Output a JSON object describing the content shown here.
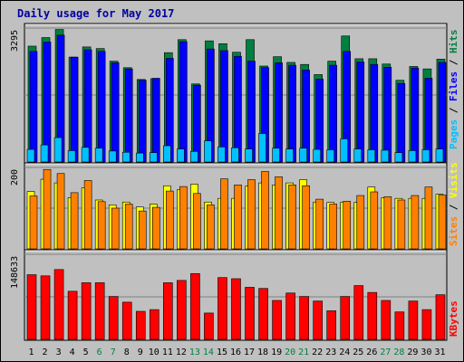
{
  "chart_data": [
    {
      "type": "bar",
      "title": "Daily usage for May 2017",
      "categories": [
        "1",
        "2",
        "3",
        "4",
        "5",
        "6",
        "7",
        "8",
        "9",
        "10",
        "11",
        "12",
        "13",
        "14",
        "15",
        "16",
        "17",
        "18",
        "19",
        "20",
        "21",
        "22",
        "23",
        "24",
        "25",
        "26",
        "27",
        "28",
        "29",
        "30",
        "31"
      ],
      "weekend_days": [
        "6",
        "7",
        "13",
        "14",
        "20",
        "21",
        "27",
        "28"
      ],
      "ymax_label": "3295",
      "ylim": [
        0,
        3295
      ],
      "series": [
        {
          "name": "Hits",
          "color": "#008040",
          "values": [
            2850,
            3060,
            3260,
            2580,
            2830,
            2790,
            2480,
            2320,
            2030,
            2050,
            2690,
            3010,
            1920,
            2980,
            2910,
            2700,
            3010,
            2360,
            2590,
            2450,
            2400,
            2150,
            2480,
            3100,
            2540,
            2540,
            2410,
            2010,
            2350,
            2290,
            2530
          ]
        },
        {
          "name": "Files",
          "color": "#0000ff",
          "values": [
            2720,
            2950,
            3120,
            2580,
            2760,
            2720,
            2440,
            2290,
            2010,
            2060,
            2550,
            2960,
            1890,
            2780,
            2740,
            2600,
            2480,
            2320,
            2440,
            2380,
            2260,
            2040,
            2380,
            2720,
            2460,
            2400,
            2330,
            1930,
            2310,
            2060,
            2450
          ]
        },
        {
          "name": "Pages",
          "color": "#00c0ff",
          "values": [
            310,
            420,
            600,
            280,
            360,
            340,
            270,
            240,
            220,
            230,
            400,
            320,
            260,
            520,
            370,
            350,
            320,
            700,
            340,
            320,
            340,
            310,
            300,
            570,
            320,
            300,
            290,
            230,
            280,
            300,
            320
          ]
        }
      ]
    },
    {
      "type": "bar",
      "ymax_label": "200",
      "ylim": [
        0,
        200
      ],
      "series": [
        {
          "name": "Visits",
          "color": "#ffff00",
          "values": [
            141,
            171,
            162,
            126,
            150,
            120,
            108,
            115,
            103,
            110,
            155,
            145,
            159,
            115,
            124,
            124,
            154,
            162,
            157,
            162,
            170,
            115,
            114,
            115,
            114,
            152,
            126,
            124,
            124,
            124,
            134
          ]
        },
        {
          "name": "Sites",
          "color": "#ff8000",
          "values": [
            130,
            195,
            185,
            138,
            168,
            116,
            100,
            110,
            93,
            102,
            142,
            153,
            136,
            108,
            172,
            157,
            170,
            190,
            177,
            157,
            155,
            122,
            110,
            117,
            131,
            140,
            128,
            120,
            131,
            152,
            132
          ]
        }
      ]
    },
    {
      "type": "bar",
      "ymax_label": "148633",
      "ylim": [
        0,
        148633
      ],
      "series": [
        {
          "name": "KBytes",
          "color": "#ff0000",
          "values": [
            113000,
            111000,
            122000,
            84000,
            99000,
            99000,
            75000,
            65000,
            49000,
            52000,
            99000,
            103000,
            115000,
            46000,
            108000,
            106000,
            91000,
            89000,
            68000,
            81000,
            75000,
            67000,
            50000,
            75000,
            94000,
            82000,
            68000,
            48000,
            67000,
            52000,
            78000
          ]
        }
      ]
    }
  ],
  "legends": {
    "top": [
      {
        "text": "Pages",
        "color": "#00c0ff"
      },
      {
        "text": " / ",
        "color": "#000000"
      },
      {
        "text": "Files",
        "color": "#0000ff"
      },
      {
        "text": " / ",
        "color": "#000000"
      },
      {
        "text": "Hits",
        "color": "#008040"
      }
    ],
    "middle": [
      {
        "text": "Sites",
        "color": "#ff8000"
      },
      {
        "text": " / ",
        "color": "#000000"
      },
      {
        "text": "Visits",
        "color": "#ffff00"
      }
    ],
    "bottom": [
      {
        "text": "KBytes",
        "color": "#ff0000"
      }
    ]
  },
  "colors": {
    "frame_bg": "#c0c0c0",
    "plot_bg": "#c0c0c0",
    "title": "#0000a0",
    "weekday_label": "#000000",
    "weekend_label": "#008040",
    "gridline": "#808080"
  }
}
